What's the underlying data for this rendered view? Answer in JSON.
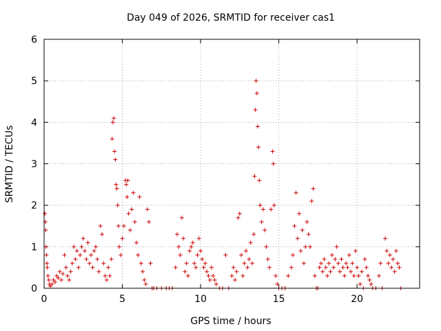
{
  "chart_data": {
    "type": "scatter",
    "title": "Day 049 of 2026, SRMTID for receiver cas1",
    "xlabel": "GPS time / hours",
    "ylabel": "SRMTID / TECUs",
    "xlim": [
      0,
      24
    ],
    "ylim": [
      0,
      6
    ],
    "xticks": [
      0,
      5,
      10,
      15,
      20
    ],
    "yticks": [
      0,
      1,
      2,
      3,
      4,
      5,
      6
    ],
    "grid": true,
    "marker": "+",
    "marker_color": "#cc0000",
    "series": [
      {
        "name": "SRMTID",
        "points": [
          [
            0.05,
            1.8
          ],
          [
            0.08,
            1.6
          ],
          [
            0.1,
            1.4
          ],
          [
            0.12,
            1.0
          ],
          [
            0.15,
            0.8
          ],
          [
            0.18,
            0.6
          ],
          [
            0.2,
            0.5
          ],
          [
            0.25,
            0.3
          ],
          [
            0.3,
            0.2
          ],
          [
            0.35,
            0.1
          ],
          [
            0.4,
            0.05
          ],
          [
            0.5,
            0.1
          ],
          [
            0.6,
            0.2
          ],
          [
            0.7,
            0.15
          ],
          [
            0.8,
            0.3
          ],
          [
            0.9,
            0.25
          ],
          [
            1.0,
            0.4
          ],
          [
            1.1,
            0.2
          ],
          [
            1.2,
            0.35
          ],
          [
            1.3,
            0.8
          ],
          [
            1.4,
            0.5
          ],
          [
            1.5,
            0.3
          ],
          [
            1.6,
            0.2
          ],
          [
            1.7,
            0.4
          ],
          [
            1.8,
            0.6
          ],
          [
            1.9,
            1.0
          ],
          [
            2.0,
            0.7
          ],
          [
            2.1,
            0.9
          ],
          [
            2.2,
            0.5
          ],
          [
            2.3,
            0.8
          ],
          [
            2.4,
            1.0
          ],
          [
            2.5,
            1.2
          ],
          [
            2.6,
            0.9
          ],
          [
            2.7,
            0.7
          ],
          [
            2.8,
            1.1
          ],
          [
            2.9,
            0.6
          ],
          [
            3.0,
            0.8
          ],
          [
            3.1,
            0.5
          ],
          [
            3.2,
            0.9
          ],
          [
            3.3,
            1.0
          ],
          [
            3.4,
            0.7
          ],
          [
            3.5,
            0.4
          ],
          [
            3.6,
            1.5
          ],
          [
            3.7,
            1.3
          ],
          [
            3.8,
            0.6
          ],
          [
            3.9,
            0.3
          ],
          [
            4.0,
            0.2
          ],
          [
            4.1,
            0.5
          ],
          [
            4.2,
            0.3
          ],
          [
            4.3,
            0.7
          ],
          [
            4.35,
            3.6
          ],
          [
            4.4,
            4.0
          ],
          [
            4.45,
            4.1
          ],
          [
            4.5,
            3.3
          ],
          [
            4.55,
            3.1
          ],
          [
            4.6,
            2.5
          ],
          [
            4.65,
            2.4
          ],
          [
            4.7,
            2.0
          ],
          [
            4.75,
            1.5
          ],
          [
            4.8,
            1.0
          ],
          [
            4.9,
            0.8
          ],
          [
            5.0,
            1.2
          ],
          [
            5.1,
            1.5
          ],
          [
            5.2,
            2.6
          ],
          [
            5.25,
            2.5
          ],
          [
            5.3,
            2.2
          ],
          [
            5.35,
            2.6
          ],
          [
            5.4,
            1.8
          ],
          [
            5.5,
            1.4
          ],
          [
            5.6,
            1.9
          ],
          [
            5.7,
            2.3
          ],
          [
            5.8,
            1.6
          ],
          [
            5.9,
            1.1
          ],
          [
            6.0,
            0.8
          ],
          [
            6.1,
            2.2
          ],
          [
            6.2,
            0.6
          ],
          [
            6.3,
            0.4
          ],
          [
            6.4,
            0.2
          ],
          [
            6.5,
            0.1
          ],
          [
            6.6,
            1.9
          ],
          [
            6.7,
            1.6
          ],
          [
            6.8,
            0.6
          ],
          [
            6.9,
            0.0
          ],
          [
            7.0,
            0.0
          ],
          [
            7.2,
            0.0
          ],
          [
            7.5,
            0.0
          ],
          [
            7.8,
            0.0
          ],
          [
            8.0,
            0.0
          ],
          [
            8.2,
            0.0
          ],
          [
            8.4,
            0.5
          ],
          [
            8.5,
            1.3
          ],
          [
            8.6,
            1.0
          ],
          [
            8.7,
            0.8
          ],
          [
            8.8,
            1.7
          ],
          [
            8.9,
            1.2
          ],
          [
            9.0,
            0.4
          ],
          [
            9.1,
            0.6
          ],
          [
            9.2,
            0.3
          ],
          [
            9.3,
            0.9
          ],
          [
            9.4,
            1.0
          ],
          [
            9.5,
            1.1
          ],
          [
            9.6,
            0.6
          ],
          [
            9.7,
            0.5
          ],
          [
            9.8,
            0.8
          ],
          [
            9.9,
            1.2
          ],
          [
            10.0,
            0.9
          ],
          [
            10.1,
            0.7
          ],
          [
            10.2,
            0.5
          ],
          [
            10.3,
            0.6
          ],
          [
            10.4,
            0.4
          ],
          [
            10.5,
            0.3
          ],
          [
            10.6,
            0.2
          ],
          [
            10.7,
            0.5
          ],
          [
            10.8,
            0.3
          ],
          [
            10.9,
            0.2
          ],
          [
            11.0,
            0.1
          ],
          [
            11.2,
            0.0
          ],
          [
            11.4,
            0.0
          ],
          [
            11.6,
            0.8
          ],
          [
            11.8,
            0.0
          ],
          [
            12.0,
            0.3
          ],
          [
            12.1,
            0.5
          ],
          [
            12.2,
            0.2
          ],
          [
            12.3,
            0.4
          ],
          [
            12.4,
            1.7
          ],
          [
            12.5,
            1.8
          ],
          [
            12.6,
            0.8
          ],
          [
            12.7,
            0.3
          ],
          [
            12.8,
            0.6
          ],
          [
            12.9,
            0.9
          ],
          [
            13.0,
            0.5
          ],
          [
            13.1,
            0.7
          ],
          [
            13.2,
            1.1
          ],
          [
            13.3,
            0.6
          ],
          [
            13.4,
            1.3
          ],
          [
            13.45,
            2.7
          ],
          [
            13.5,
            4.3
          ],
          [
            13.55,
            5.0
          ],
          [
            13.6,
            4.7
          ],
          [
            13.65,
            3.9
          ],
          [
            13.7,
            3.4
          ],
          [
            13.75,
            2.6
          ],
          [
            13.8,
            2.0
          ],
          [
            13.9,
            1.6
          ],
          [
            14.0,
            1.9
          ],
          [
            14.1,
            1.4
          ],
          [
            14.2,
            1.0
          ],
          [
            14.3,
            0.7
          ],
          [
            14.4,
            0.5
          ],
          [
            14.5,
            1.9
          ],
          [
            14.6,
            3.3
          ],
          [
            14.65,
            3.0
          ],
          [
            14.7,
            2.0
          ],
          [
            14.8,
            0.3
          ],
          [
            14.9,
            0.1
          ],
          [
            15.0,
            0.0
          ],
          [
            15.2,
            0.0
          ],
          [
            15.4,
            0.0
          ],
          [
            15.6,
            0.3
          ],
          [
            15.8,
            0.5
          ],
          [
            15.9,
            0.8
          ],
          [
            16.0,
            1.5
          ],
          [
            16.1,
            2.3
          ],
          [
            16.2,
            1.2
          ],
          [
            16.3,
            1.8
          ],
          [
            16.4,
            0.9
          ],
          [
            16.5,
            1.4
          ],
          [
            16.6,
            0.6
          ],
          [
            16.7,
            1.0
          ],
          [
            16.8,
            1.6
          ],
          [
            16.9,
            1.3
          ],
          [
            17.0,
            1.0
          ],
          [
            17.1,
            2.1
          ],
          [
            17.2,
            2.4
          ],
          [
            17.3,
            0.3
          ],
          [
            17.4,
            0.0
          ],
          [
            17.5,
            0.0
          ],
          [
            17.6,
            0.5
          ],
          [
            17.7,
            0.6
          ],
          [
            17.8,
            0.4
          ],
          [
            17.9,
            0.7
          ],
          [
            18.0,
            0.5
          ],
          [
            18.1,
            0.3
          ],
          [
            18.2,
            0.6
          ],
          [
            18.3,
            0.4
          ],
          [
            18.4,
            0.8
          ],
          [
            18.5,
            0.5
          ],
          [
            18.6,
            0.7
          ],
          [
            18.7,
            1.0
          ],
          [
            18.8,
            0.6
          ],
          [
            18.9,
            0.4
          ],
          [
            19.0,
            0.7
          ],
          [
            19.1,
            0.5
          ],
          [
            19.2,
            0.3
          ],
          [
            19.3,
            0.6
          ],
          [
            19.4,
            0.5
          ],
          [
            19.5,
            0.8
          ],
          [
            19.6,
            0.4
          ],
          [
            19.7,
            0.6
          ],
          [
            19.8,
            0.3
          ],
          [
            19.9,
            0.9
          ],
          [
            20.0,
            0.5
          ],
          [
            20.1,
            0.3
          ],
          [
            20.2,
            0.1
          ],
          [
            20.3,
            0.4
          ],
          [
            20.4,
            0.0
          ],
          [
            20.5,
            0.7
          ],
          [
            20.6,
            0.5
          ],
          [
            20.7,
            0.3
          ],
          [
            20.8,
            0.2
          ],
          [
            20.9,
            0.1
          ],
          [
            21.0,
            0.0
          ],
          [
            21.2,
            0.0
          ],
          [
            21.4,
            0.3
          ],
          [
            21.5,
            0.6
          ],
          [
            21.6,
            0.0
          ],
          [
            21.8,
            1.2
          ],
          [
            21.9,
            0.9
          ],
          [
            22.0,
            0.6
          ],
          [
            22.1,
            0.8
          ],
          [
            22.2,
            0.5
          ],
          [
            22.3,
            0.7
          ],
          [
            22.4,
            0.4
          ],
          [
            22.5,
            0.9
          ],
          [
            22.6,
            0.6
          ],
          [
            22.7,
            0.5
          ],
          [
            22.8,
            0.0
          ]
        ]
      }
    ]
  }
}
